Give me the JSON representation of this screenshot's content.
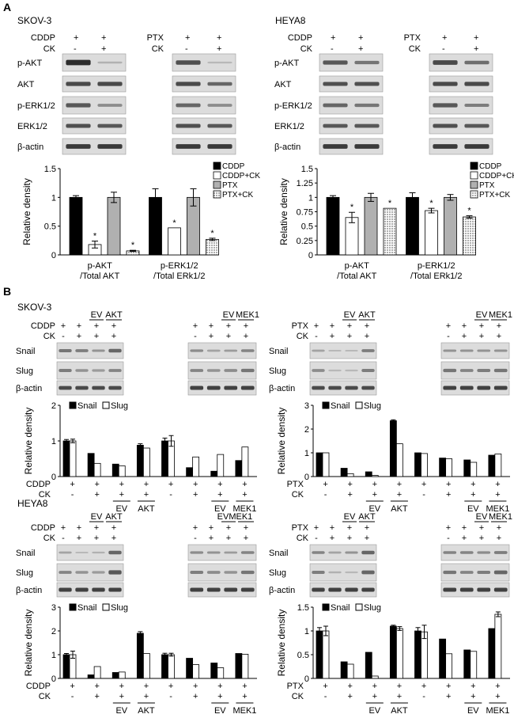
{
  "panel_labels": {
    "a": "A",
    "b": "B"
  },
  "cell_lines": {
    "skov3": "SKOV-3",
    "heya8": "HEYA8"
  },
  "common": {
    "ylabel": "Relative density",
    "plus": "+",
    "minus": "-",
    "cddp": "CDDP",
    "ptx": "PTX",
    "ck": "CK",
    "ev": "EV",
    "akt": "AKT",
    "mek1": "MEK1",
    "evmek1_tight": "EVMEK1"
  },
  "blots": {
    "a_rows": [
      "p-AKT",
      "AKT",
      "p-ERK1/2",
      "ERK1/2",
      "β-actin"
    ],
    "b_rows": [
      "Snail",
      "Slug",
      "β-actin"
    ]
  },
  "panelA": {
    "skov3": {
      "xcats": [
        [
          "p-AKT",
          "/Total AKT"
        ],
        [
          "p-ERK1/2",
          "/Total ERk1/2"
        ]
      ],
      "legend": [
        "CDDP",
        "CDDP+CK",
        "PTX",
        "PTX+CK"
      ]
    },
    "heya8": {
      "xcats": [
        [
          "p-AKT",
          "/Total AKT"
        ],
        [
          "p-ERK1/2",
          "/Total ERk1/2"
        ]
      ],
      "legend": [
        "CDDP",
        "CDDP+CK",
        "PTX",
        "PTX+CK"
      ]
    }
  },
  "chart_data": [
    {
      "type": "bar",
      "ylabel": "Relative density",
      "categories": [
        "p-AKT /Total AKT",
        "p-ERK1/2 /Total ERk1/2"
      ],
      "series": [
        {
          "name": "CDDP",
          "values": [
            1.0,
            1.0
          ],
          "err": [
            0.03,
            0.15
          ]
        },
        {
          "name": "CDDP+CK",
          "values": [
            0.18,
            0.47
          ],
          "err": [
            0.06,
            0.0
          ]
        },
        {
          "name": "PTX",
          "values": [
            1.0,
            1.0
          ],
          "err": [
            0.09,
            0.15
          ]
        },
        {
          "name": "PTX+CK",
          "values": [
            0.07,
            0.27
          ],
          "err": [
            0.01,
            0.02
          ]
        }
      ],
      "ylim": [
        0,
        1.5
      ],
      "yticks": [
        "0",
        "0.5",
        "1",
        "1.5"
      ],
      "stars": [
        [
          false,
          false
        ],
        [
          true,
          true
        ],
        [
          false,
          false
        ],
        [
          true,
          true
        ]
      ]
    },
    {
      "type": "bar",
      "ylabel": "Relative density",
      "categories": [
        "p-AKT /Total AKT",
        "p-ERK1/2 /Total ERk1/2"
      ],
      "series": [
        {
          "name": "CDDP",
          "values": [
            1.0,
            1.0
          ],
          "err": [
            0.03,
            0.08
          ]
        },
        {
          "name": "CDDP+CK",
          "values": [
            0.65,
            0.77
          ],
          "err": [
            0.09,
            0.04
          ]
        },
        {
          "name": "PTX",
          "values": [
            1.0,
            1.0
          ],
          "err": [
            0.07,
            0.05
          ]
        },
        {
          "name": "PTX+CK",
          "values": [
            0.81,
            0.66
          ],
          "err": [
            0.0,
            0.02
          ]
        }
      ],
      "ylim": [
        0,
        1.5
      ],
      "yticks": [
        "0",
        "0.25",
        "0.5",
        "0.75",
        "1",
        "1.25",
        "1.5"
      ],
      "stars": [
        [
          false,
          false
        ],
        [
          true,
          true
        ],
        [
          false,
          false
        ],
        [
          true,
          true
        ]
      ]
    },
    {
      "type": "bar",
      "ylabel": "Relative density",
      "legend": [
        "Snail",
        "Slug"
      ],
      "series": [
        {
          "name": "Snail",
          "values": [
            1.0,
            0.65,
            0.35,
            0.88,
            1.0,
            0.25,
            0.15,
            0.45
          ],
          "err": [
            0.04,
            0,
            0,
            0.04,
            0.08,
            0,
            0,
            0
          ]
        },
        {
          "name": "Slug",
          "values": [
            1.0,
            0.37,
            0.3,
            0.8,
            1.0,
            0.55,
            0.62,
            0.83
          ],
          "err": [
            0.05,
            0,
            0,
            0,
            0.15,
            0,
            0,
            0
          ]
        }
      ],
      "ylim": [
        0,
        2
      ],
      "yticks": [
        "0",
        "1",
        "2"
      ],
      "cond_label": "CDDP",
      "cond": [
        "+",
        "+",
        "+",
        "+",
        "+",
        "+",
        "+",
        "+"
      ],
      "ck": [
        "-",
        "+",
        "+",
        "+",
        "-",
        "+",
        "+",
        "+"
      ],
      "groups": [
        [
          "EV",
          2
        ],
        [
          "AKT",
          3
        ],
        [
          "EV",
          6
        ],
        [
          "MEK1",
          7
        ]
      ]
    },
    {
      "type": "bar",
      "ylabel": "Relative density",
      "legend": [
        "Snail",
        "Slug"
      ],
      "series": [
        {
          "name": "Snail",
          "values": [
            1.0,
            0.35,
            0.2,
            2.35,
            1.0,
            0.78,
            0.7,
            0.9
          ],
          "err": [
            0,
            0,
            0,
            0.04,
            0,
            0,
            0,
            0
          ]
        },
        {
          "name": "Slug",
          "values": [
            1.0,
            0.12,
            0.05,
            1.38,
            0.97,
            0.75,
            0.6,
            0.95
          ],
          "err": [
            0,
            0,
            0,
            0,
            0,
            0,
            0,
            0
          ]
        }
      ],
      "ylim": [
        0,
        3
      ],
      "yticks": [
        "0",
        "1",
        "2",
        "3"
      ],
      "cond_label": "PTX",
      "cond": [
        "+",
        "+",
        "+",
        "+",
        "+",
        "+",
        "+",
        "+"
      ],
      "ck": [
        "-",
        "+",
        "+",
        "+",
        "-",
        "+",
        "+",
        "+"
      ],
      "groups": [
        [
          "EV",
          2
        ],
        [
          "AKT",
          3
        ],
        [
          "EV",
          6
        ],
        [
          "MEK1",
          7
        ]
      ]
    },
    {
      "type": "bar",
      "ylabel": "Relative density",
      "legend": [
        "Snail",
        "Slug"
      ],
      "series": [
        {
          "name": "Snail",
          "values": [
            1.0,
            0.15,
            0.25,
            1.9,
            1.0,
            0.85,
            0.65,
            1.05
          ],
          "err": [
            0.05,
            0,
            0,
            0.07,
            0.06,
            0,
            0,
            0
          ]
        },
        {
          "name": "Slug",
          "values": [
            1.0,
            0.5,
            0.27,
            1.05,
            1.0,
            0.58,
            0.45,
            1.02
          ],
          "err": [
            0.15,
            0,
            0,
            0,
            0.06,
            0,
            0,
            0
          ]
        }
      ],
      "ylim": [
        0,
        3
      ],
      "yticks": [
        "0",
        "1",
        "2",
        "3"
      ],
      "cond_label": "CDDP",
      "cond": [
        "+",
        "+",
        "+",
        "+",
        "+",
        "+",
        "+",
        "+"
      ],
      "ck": [
        "-",
        "+",
        "+",
        "+",
        "-",
        "+",
        "+",
        "+"
      ],
      "groups": [
        [
          "EV",
          2
        ],
        [
          "AKT",
          3
        ],
        [
          "EV",
          6
        ],
        [
          "MEK1",
          7
        ]
      ]
    },
    {
      "type": "bar",
      "ylabel": "Relative density",
      "legend": [
        "Snail",
        "Slug"
      ],
      "series": [
        {
          "name": "Snail",
          "values": [
            1.0,
            0.35,
            0.55,
            1.1,
            1.0,
            0.83,
            0.6,
            1.05
          ],
          "err": [
            0.07,
            0,
            0,
            0.02,
            0.07,
            0,
            0,
            0
          ]
        },
        {
          "name": "Slug",
          "values": [
            1.0,
            0.3,
            0.05,
            1.05,
            0.98,
            0.52,
            0.57,
            1.35
          ],
          "err": [
            0.1,
            0,
            0,
            0.04,
            0.14,
            0,
            0,
            0.05
          ]
        }
      ],
      "ylim": [
        0,
        1.5
      ],
      "yticks": [
        "0",
        "0.5",
        "1",
        "1.5"
      ],
      "cond_label": "PTX",
      "cond": [
        "+",
        "+",
        "+",
        "+",
        "+",
        "+",
        "+",
        "+"
      ],
      "ck": [
        "-",
        "+",
        "+",
        "+",
        "-",
        "+",
        "+",
        "+"
      ],
      "groups": [
        [
          "EV",
          2
        ],
        [
          "AKT",
          3
        ],
        [
          "EV",
          6
        ],
        [
          "MEK1",
          7
        ]
      ]
    }
  ]
}
